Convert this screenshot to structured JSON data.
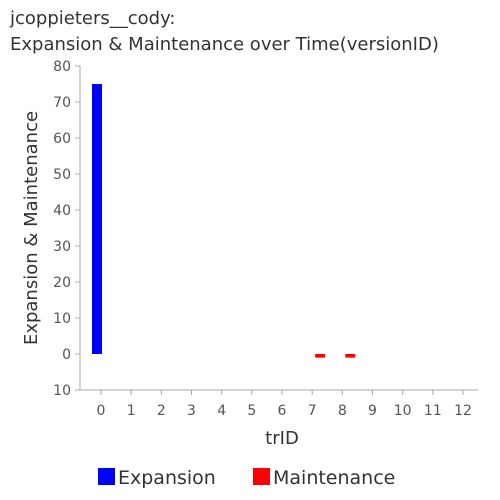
{
  "chart_data": {
    "type": "bar",
    "title": "jcoppieters__cody:",
    "subtitle": "Expansion & Maintenance over Time(versionID)",
    "x_label": "trID",
    "y_label": "Expansion & Maintenance",
    "categories": [
      "0",
      "1",
      "2",
      "3",
      "4",
      "5",
      "6",
      "7",
      "8",
      "9",
      "10",
      "11",
      "12"
    ],
    "series": [
      {
        "name": "Expansion",
        "color": "#0000ff",
        "values": [
          75,
          0,
          0,
          0,
          0,
          0,
          0,
          0,
          0,
          0,
          0,
          0,
          0
        ]
      },
      {
        "name": "Maintenance",
        "color": "#ff0000",
        "values": [
          0,
          0,
          0,
          0,
          0,
          0,
          0,
          -1,
          -1,
          0,
          0,
          0,
          0
        ]
      }
    ],
    "ylim": [
      -10,
      80
    ],
    "yticks": [
      {
        "value": -10,
        "label": "10"
      },
      0,
      10,
      20,
      30,
      40,
      50,
      60,
      70,
      80
    ],
    "legend": "bottom"
  }
}
